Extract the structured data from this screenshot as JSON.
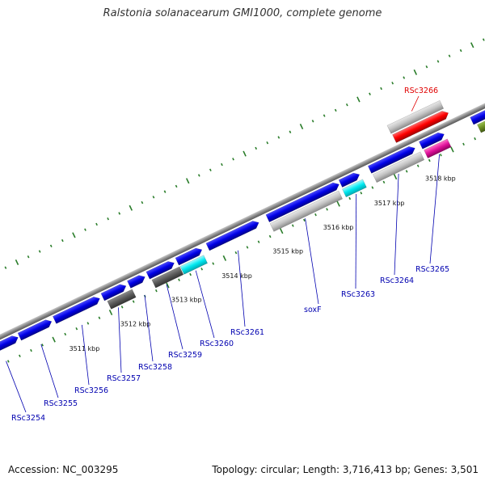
{
  "title": "Ralstonia solanacearum GMI1000, complete genome",
  "accession": "Accession: NC_003295",
  "summary": "Topology: circular; Length: 3,716,413 bp; Genes: 3,501",
  "colors": {
    "cds_forward": "#0000e6",
    "cds_reverse_gray": "#c0c0c0",
    "dark_gray": "#606060",
    "cyan": "#00e8f0",
    "red": "#ff0000",
    "magenta": "#e0109a",
    "olive": "#6b8e23",
    "tick_green": "#2a7d2a",
    "backbone": "#8a8a8a",
    "label_blue": "#0000b0",
    "label_red": "#e00000"
  },
  "kbp_ticks": [
    "3511 kbp",
    "3512 kbp",
    "3513 kbp",
    "3514 kbp",
    "3515 kbp",
    "3516 kbp",
    "3517 kbp",
    "3518 kbp"
  ],
  "gene_labels": [
    {
      "text": "RSc3254",
      "color": "blue"
    },
    {
      "text": "RSc3255",
      "color": "blue"
    },
    {
      "text": "RSc3256",
      "color": "blue"
    },
    {
      "text": "RSc3257",
      "color": "blue"
    },
    {
      "text": "RSc3258",
      "color": "blue"
    },
    {
      "text": "RSc3259",
      "color": "blue"
    },
    {
      "text": "RSc3260",
      "color": "blue"
    },
    {
      "text": "RSc3261",
      "color": "blue"
    },
    {
      "text": "soxF",
      "color": "blue"
    },
    {
      "text": "RSc3263",
      "color": "blue"
    },
    {
      "text": "RSc3264",
      "color": "blue"
    },
    {
      "text": "RSc3265",
      "color": "blue"
    },
    {
      "text": "RSc3266",
      "color": "red"
    }
  ]
}
